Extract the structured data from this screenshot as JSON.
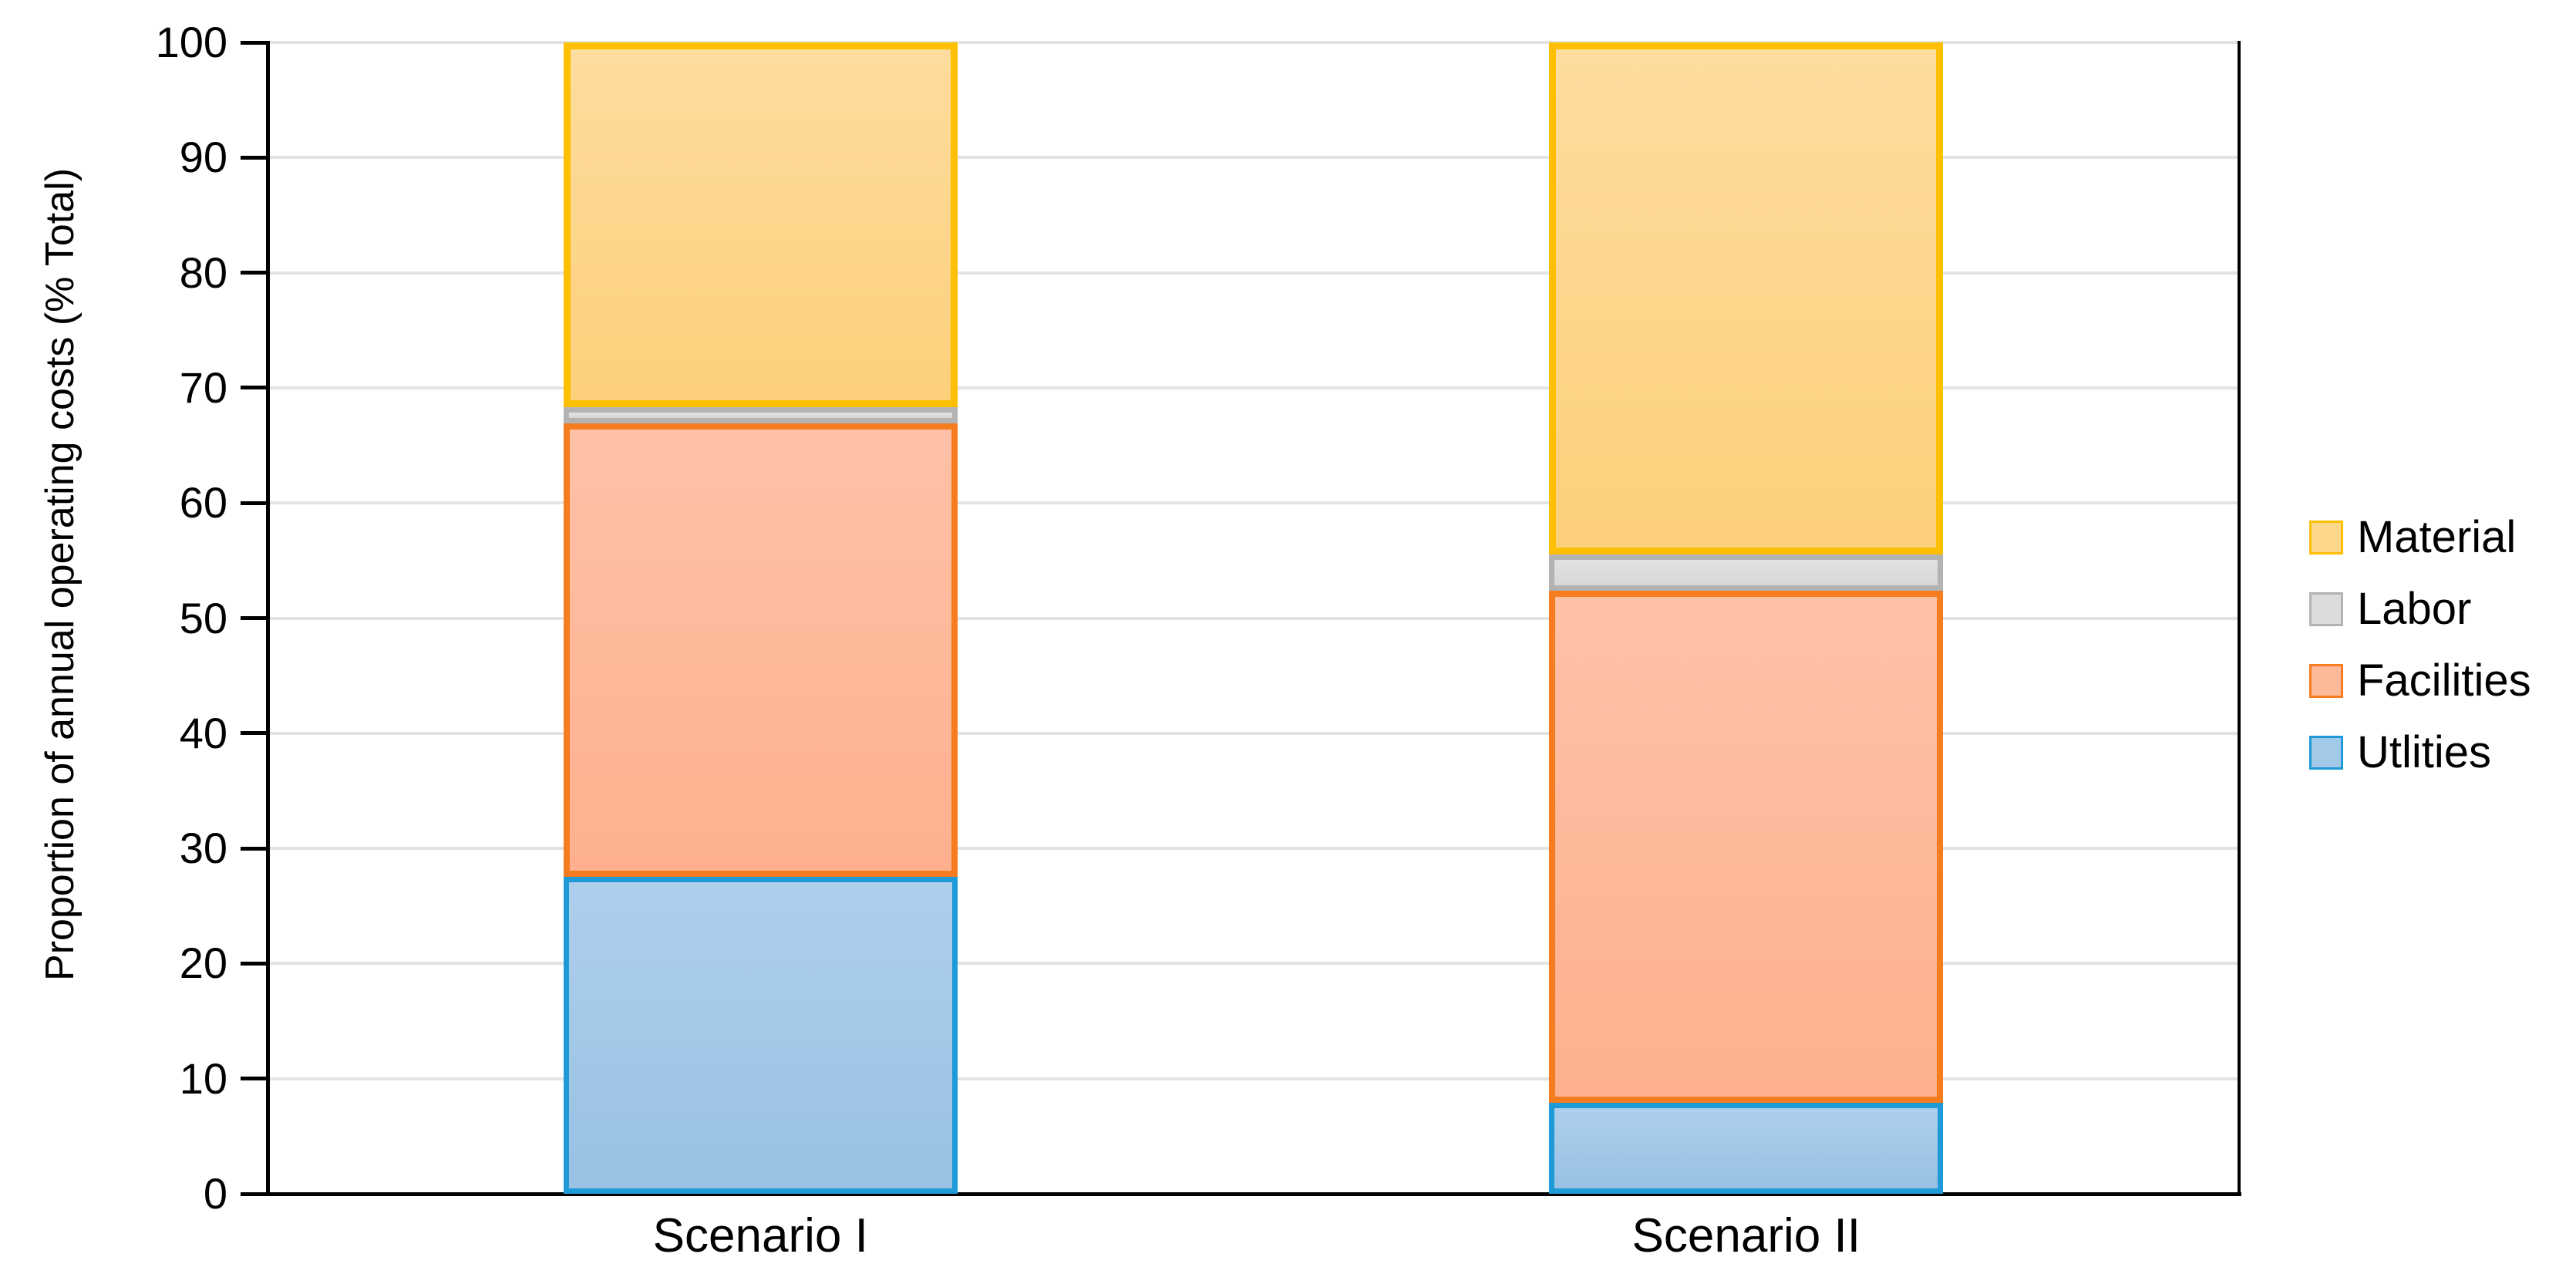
{
  "chart_data": {
    "type": "bar",
    "stacked": true,
    "title": "",
    "xlabel": "",
    "ylabel": "Proportion of annual operating costs (% Total)",
    "ylim": [
      0,
      100
    ],
    "yticks": [
      0,
      10,
      20,
      30,
      40,
      50,
      60,
      70,
      80,
      90,
      100
    ],
    "grid": true,
    "categories": [
      "Scenario I",
      "Scenario II"
    ],
    "series": [
      {
        "name": "Utlities",
        "values": [
          27.5,
          7.9
        ],
        "fill_top": "#AECFEC",
        "fill_bottom": "#98C1E4",
        "border": "#1E9AD6",
        "legend_fill": "#A3C9E8"
      },
      {
        "name": "Facilities",
        "values": [
          39.4,
          44.5
        ],
        "fill_top": "#FEC1A7",
        "fill_bottom": "#FEB08E",
        "border": "#F57D20",
        "legend_fill": "#FEB99B"
      },
      {
        "name": "Labor",
        "values": [
          1.4,
          3.1
        ],
        "fill_top": "#E2E2E2",
        "fill_bottom": "#D7D7D7",
        "border": "#B3B3B3",
        "legend_fill": "#DCDCDC"
      },
      {
        "name": "Material",
        "values": [
          31.7,
          44.5
        ],
        "fill_top": "#FEDC9E",
        "fill_bottom": "#FCD07B",
        "border": "#FEBF00",
        "legend_fill": "#FDD78C"
      }
    ],
    "legend": {
      "position": "right",
      "entries": [
        "Material",
        "Labor",
        "Facilities",
        "Utlities"
      ]
    },
    "colors": {
      "axis": "#000000",
      "gridline": "#E3E3E3",
      "background": "#FFFFFF",
      "text": "#000000"
    }
  }
}
